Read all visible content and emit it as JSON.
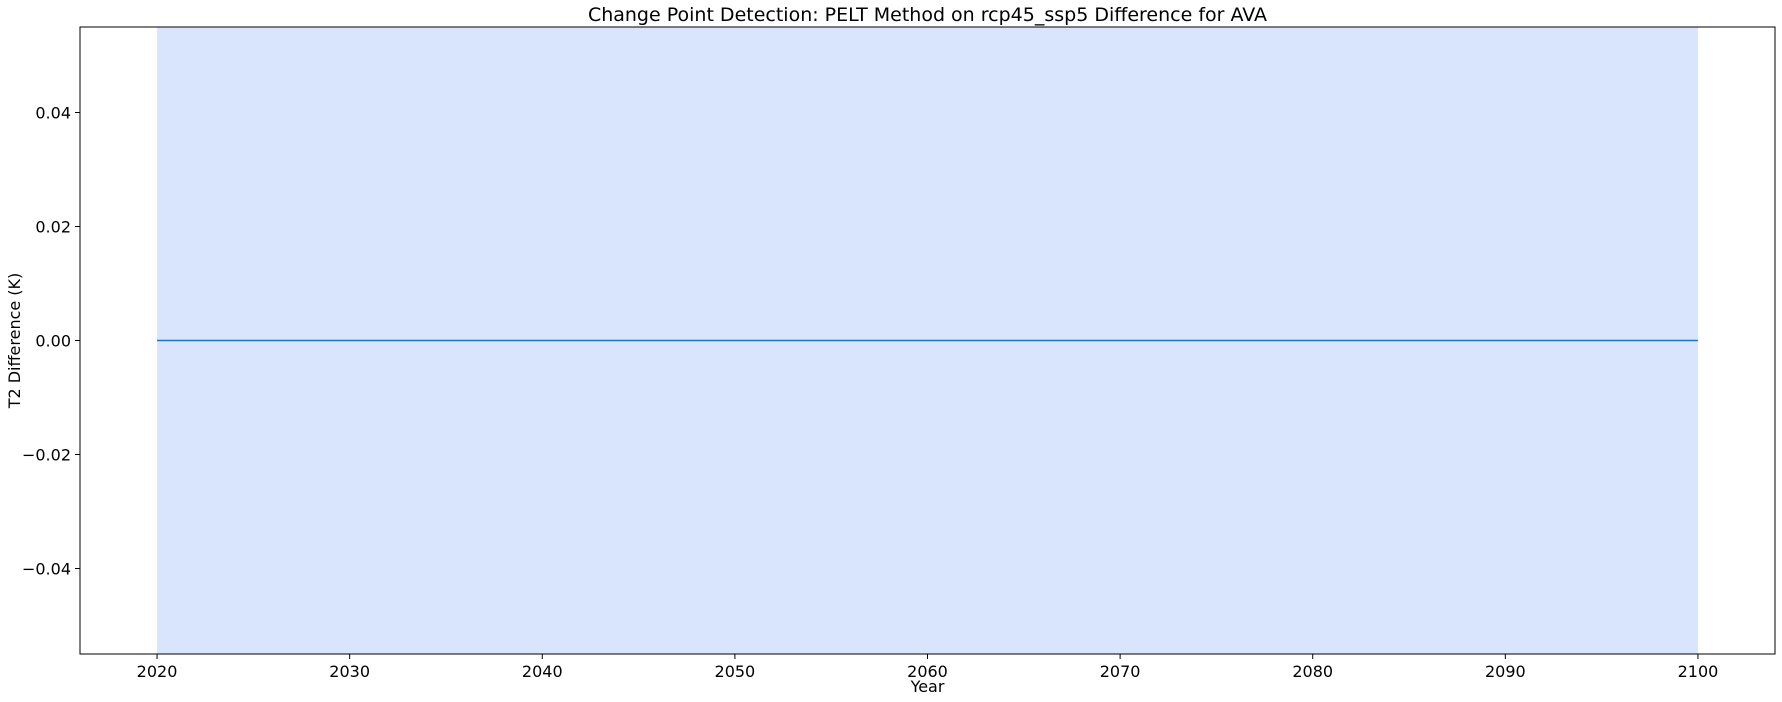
{
  "chart_data": {
    "type": "line",
    "title": "Change Point Detection: PELT Method on rcp45_ssp5 Difference for AVA",
    "xlabel": "Year",
    "ylabel": "T2 Difference (K)",
    "xlim": [
      2016,
      2104
    ],
    "ylim": [
      -0.055,
      0.055
    ],
    "x_ticks": [
      2020,
      2030,
      2040,
      2050,
      2060,
      2070,
      2080,
      2090,
      2100
    ],
    "y_ticks": [
      -0.04,
      -0.02,
      0.0,
      0.02,
      0.04
    ],
    "y_tick_labels": [
      "−0.04",
      "−0.02",
      "0.00",
      "0.02",
      "0.04"
    ],
    "grid": false,
    "series": [
      {
        "x": [
          2020,
          2100
        ],
        "values": [
          0.0,
          0.0
        ],
        "color": "#1f77b4"
      }
    ],
    "segments": [
      {
        "start": 2020,
        "end": 2100,
        "color": "#d9e5fc"
      }
    ]
  }
}
